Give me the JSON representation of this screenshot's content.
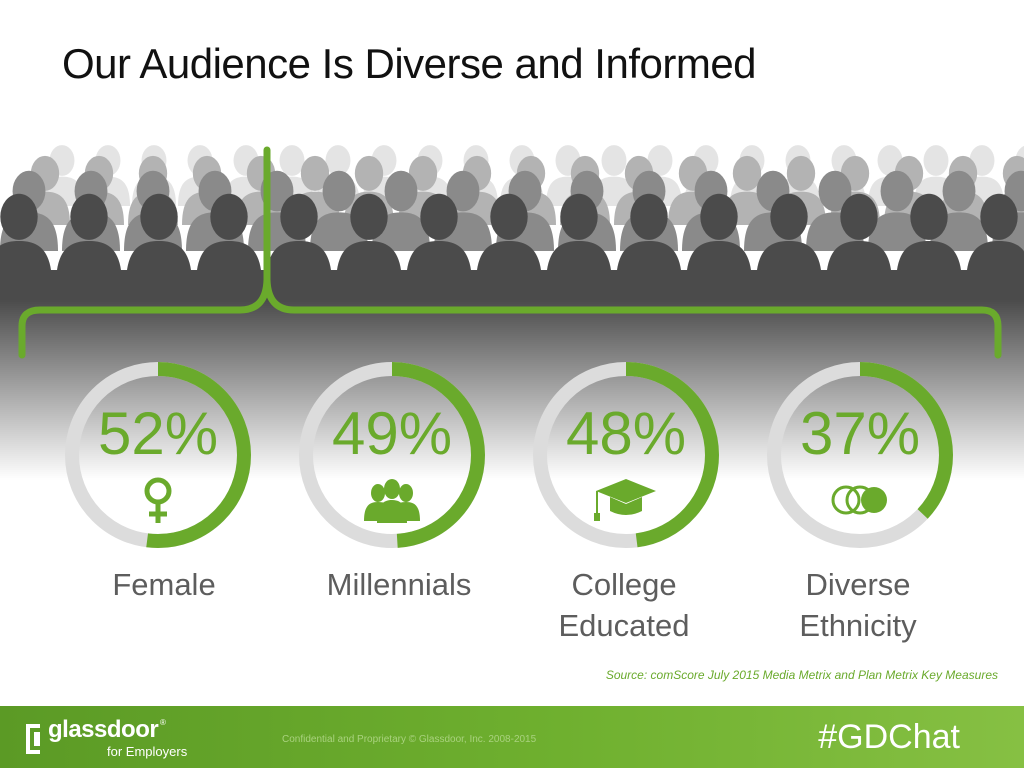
{
  "title": "Our Audience Is Diverse and Informed",
  "colors": {
    "accent": "#6aaa2c",
    "ring_track": "#dcdcdc",
    "label": "#5d5d5d"
  },
  "stats": [
    {
      "percent": 52,
      "percent_label": "52%",
      "icon": "female-symbol-icon",
      "label": "Female"
    },
    {
      "percent": 49,
      "percent_label": "49%",
      "icon": "group-people-icon",
      "label": "Millennials"
    },
    {
      "percent": 48,
      "percent_label": "48%",
      "icon": "graduation-cap-icon",
      "label_lines": [
        "College",
        "Educated"
      ]
    },
    {
      "percent": 37,
      "percent_label": "37%",
      "icon": "overlapping-circles-icon",
      "label_lines": [
        "Diverse",
        "Ethnicity"
      ]
    }
  ],
  "source": "Source: comScore July 2015 Media Metrix and Plan Metrix Key Measures",
  "footer": {
    "logo_text": "glassdoor",
    "logo_sub": "for Employers",
    "confidential": "Confidential and Proprietary © Glassdoor, Inc. 2008-2015",
    "hashtag": "#GDChat"
  }
}
